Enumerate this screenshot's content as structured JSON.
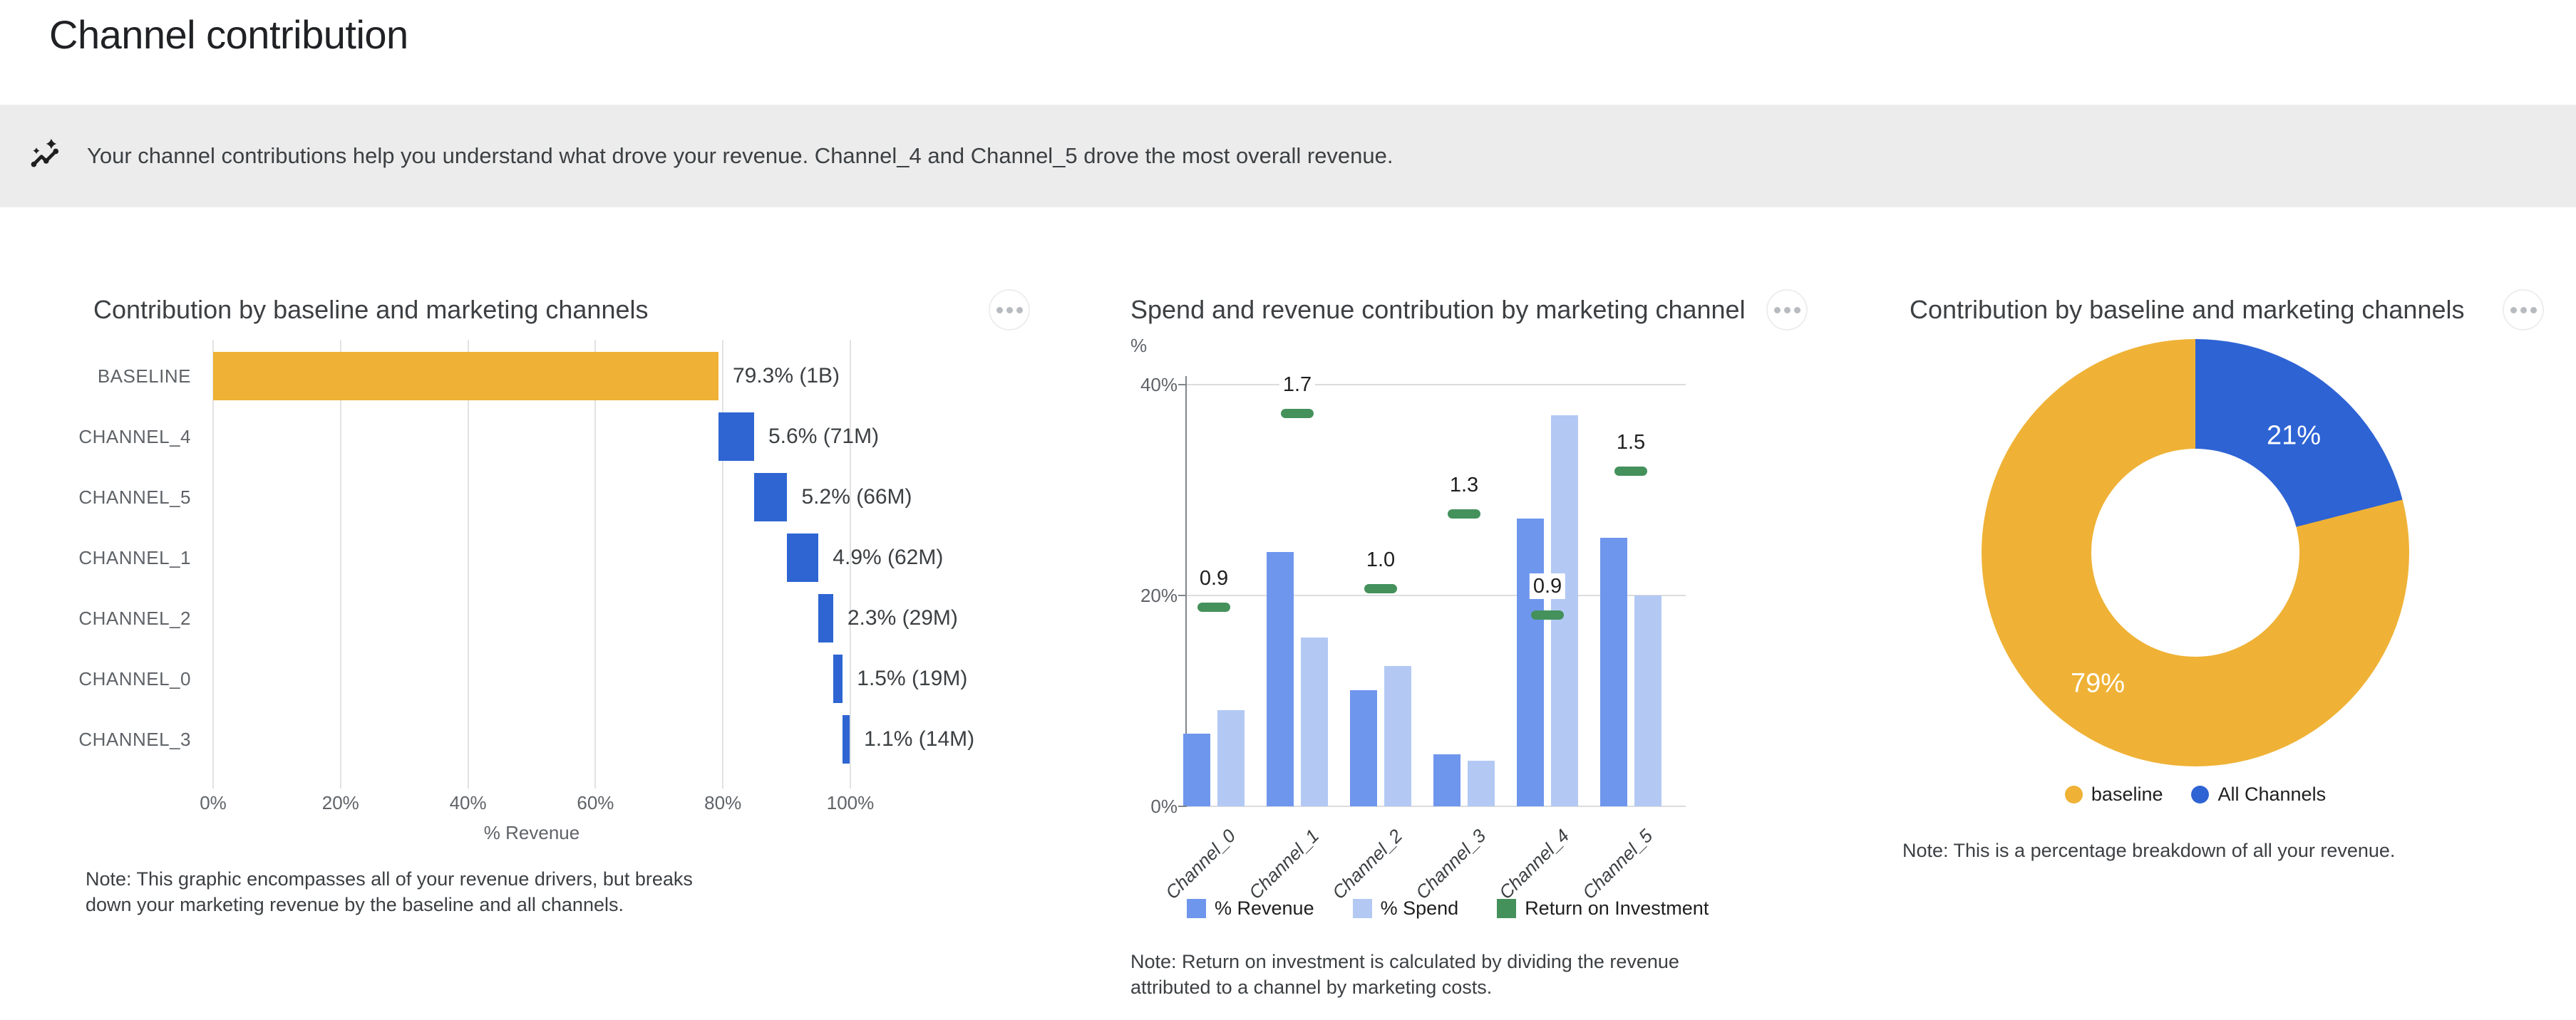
{
  "page": {
    "title": "Channel contribution"
  },
  "banner": {
    "icon": "auto-graph-icon",
    "text": "Your channel contributions help you understand what drove your revenue. Channel_4 and Channel_5 drove the most overall revenue."
  },
  "colors": {
    "baseline_orange": "#EFB236",
    "channel_blue": "#2E65D2",
    "donut_blue": "#2E63D4",
    "revenue_blue": "#6F96ED",
    "spend_blue": "#B3C9F4",
    "roi_green": "#44915C",
    "banner_bg": "#ECECEC",
    "grid_gray": "#E2E2E2"
  },
  "chart_data": [
    {
      "type": "bar",
      "subtype": "horizontal-waterfall",
      "title": "Contribution by baseline and marketing channels",
      "xlabel": "% Revenue",
      "x_ticks": [
        "0%",
        "20%",
        "40%",
        "60%",
        "80%",
        "100%"
      ],
      "xlim": [
        0,
        100
      ],
      "grid": true,
      "rows": [
        {
          "label": "BASELINE",
          "display": "79.3% (1B)",
          "start": 0,
          "end": 79.3,
          "series": "baseline"
        },
        {
          "label": "CHANNEL_4",
          "display": "5.6% (71M)",
          "start": 79.3,
          "end": 84.9,
          "series": "channel"
        },
        {
          "label": "CHANNEL_5",
          "display": "5.2% (66M)",
          "start": 84.9,
          "end": 90.1,
          "series": "channel"
        },
        {
          "label": "CHANNEL_1",
          "display": "4.9% (62M)",
          "start": 90.1,
          "end": 95.0,
          "series": "channel"
        },
        {
          "label": "CHANNEL_2",
          "display": "2.3% (29M)",
          "start": 95.0,
          "end": 97.3,
          "series": "channel"
        },
        {
          "label": "CHANNEL_0",
          "display": "1.5% (19M)",
          "start": 97.3,
          "end": 98.8,
          "series": "channel"
        },
        {
          "label": "CHANNEL_3",
          "display": "1.1% (14M)",
          "start": 98.8,
          "end": 99.9,
          "series": "channel"
        }
      ],
      "note": "Note: This graphic encompasses all of your revenue drivers, but breaks down your marketing revenue by the baseline and all channels."
    },
    {
      "type": "bar",
      "subtype": "grouped-vertical-with-roi-markers",
      "title": "Spend and revenue contribution by marketing channel",
      "y_unit": "%",
      "y_ticks": [
        "0%",
        "20%",
        "40%"
      ],
      "y_tick_values": [
        0,
        20,
        40
      ],
      "ylim": [
        0,
        40
      ],
      "grid": true,
      "legend_position": "bottom",
      "categories": [
        "Channel_0",
        "Channel_1",
        "Channel_2",
        "Channel_3",
        "Channel_4",
        "Channel_5"
      ],
      "series": [
        {
          "name": "% Revenue",
          "values": [
            6.9,
            24.1,
            11.0,
            4.9,
            27.3,
            25.5
          ]
        },
        {
          "name": "% Spend",
          "values": [
            9.1,
            16.0,
            13.3,
            4.3,
            37.1,
            20.0
          ]
        },
        {
          "name": "Return on Investment",
          "values": [
            0.9,
            1.7,
            1.0,
            1.3,
            0.9,
            1.5
          ],
          "labels": [
            "0.9",
            "1.7",
            "1.0",
            "1.3",
            "0.9",
            "1.5"
          ],
          "marker_y_pct": [
            18.9,
            37.3,
            20.7,
            27.8,
            18.2,
            31.8
          ]
        }
      ],
      "note": "Note: Return on investment is calculated by dividing the revenue attributed to a channel by marketing costs."
    },
    {
      "type": "pie",
      "subtype": "donut",
      "title": "Contribution by baseline and marketing channels",
      "legend_position": "bottom",
      "slices": [
        {
          "label": "baseline",
          "value": 79,
          "display": "79%"
        },
        {
          "label": "All Channels",
          "value": 21,
          "display": "21%"
        }
      ],
      "note": "Note: This is a percentage breakdown of all your revenue."
    }
  ]
}
